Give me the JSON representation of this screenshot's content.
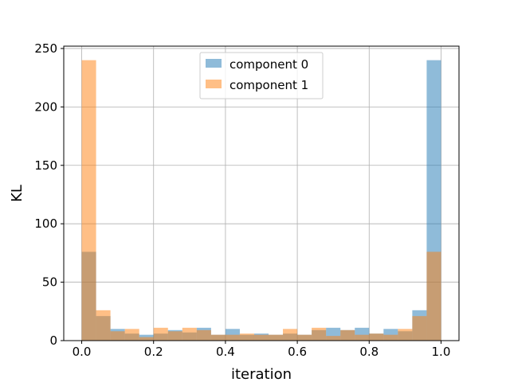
{
  "chart_data": {
    "type": "histogram",
    "title": "",
    "xlabel": "iteration",
    "ylabel": "KL",
    "xlim": [
      -0.05,
      1.05
    ],
    "ylim": [
      0,
      252
    ],
    "grid": true,
    "legend_position": "top-center",
    "bin_edges": [
      0.0,
      0.04,
      0.08,
      0.12,
      0.16,
      0.2,
      0.24,
      0.28,
      0.32,
      0.36,
      0.4,
      0.44,
      0.48,
      0.52,
      0.56,
      0.6,
      0.64,
      0.68,
      0.72,
      0.76,
      0.8,
      0.84,
      0.88,
      0.92,
      0.96,
      1.0
    ],
    "x_ticks": [
      "0.0",
      "0.2",
      "0.4",
      "0.6",
      "0.8",
      "1.0"
    ],
    "y_ticks": [
      "0",
      "50",
      "100",
      "150",
      "200",
      "250"
    ],
    "series": [
      {
        "name": "component 0",
        "color": "#1f77b4",
        "counts": [
          76,
          21,
          10,
          6,
          5,
          6,
          9,
          7,
          11,
          5,
          10,
          5,
          6,
          5,
          6,
          5,
          9,
          11,
          9,
          11,
          6,
          10,
          8,
          26,
          240
        ]
      },
      {
        "name": "component 1",
        "color": "#ff7f0e",
        "counts": [
          240,
          26,
          8,
          10,
          3,
          11,
          8,
          11,
          9,
          5,
          5,
          6,
          5,
          5,
          10,
          5,
          11,
          4,
          9,
          5,
          6,
          5,
          10,
          21,
          76
        ]
      }
    ],
    "bar_alpha": 0.5
  }
}
